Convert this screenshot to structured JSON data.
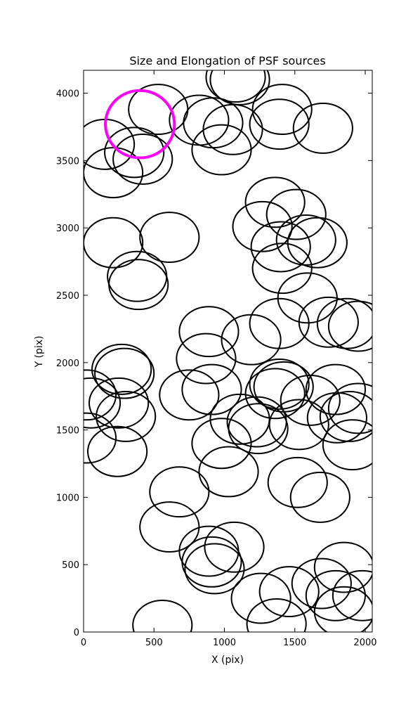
{
  "chart_data": {
    "type": "ellipse-scatter",
    "title": "Size and Elongation of PSF sources",
    "xlabel": "X (pix)",
    "ylabel": "Y (pix)",
    "xlim": [
      0,
      2050
    ],
    "ylim": [
      0,
      4170
    ],
    "xticks": [
      0,
      500,
      1000,
      1500,
      2000
    ],
    "yticks": [
      0,
      500,
      1000,
      1500,
      2000,
      2500,
      3000,
      3500,
      4000
    ],
    "series": [
      {
        "color": "#000000",
        "ellipse_width": 420,
        "ellipse_height": 370,
        "x": [
          1080,
          1110,
          530,
          150,
          360,
          420,
          210,
          820,
          920,
          1060,
          980,
          1410,
          1390,
          1700,
          1360,
          1510,
          1270,
          1400,
          1580,
          1660,
          1410,
          210,
          610,
          380,
          390,
          1590,
          1390,
          1190,
          890,
          870,
          1740,
          1870,
          1950,
          270,
          290,
          20,
          50,
          250,
          300,
          750,
          910,
          1390,
          1420,
          1360,
          1610,
          1790,
          1950,
          1800,
          1890,
          1530,
          1110,
          1230,
          1240,
          980,
          1030,
          20,
          240,
          1910,
          1520,
          1680,
          680,
          610,
          890,
          1070,
          910,
          930,
          1260,
          1460,
          1370,
          1690,
          1850,
          1790,
          1980,
          1850,
          560
        ],
        "y": [
          4120,
          4100,
          3880,
          3620,
          3560,
          3510,
          3410,
          3800,
          3780,
          3730,
          3580,
          3880,
          3770,
          3740,
          3190,
          3100,
          3010,
          2860,
          2910,
          2890,
          2700,
          2890,
          2930,
          2640,
          2580,
          2480,
          2290,
          2170,
          2230,
          2030,
          2300,
          2290,
          2270,
          1950,
          1920,
          1760,
          1700,
          1700,
          1600,
          1760,
          1800,
          1840,
          1820,
          1770,
          1720,
          1800,
          1660,
          1590,
          1600,
          1540,
          1580,
          1560,
          1510,
          1400,
          1190,
          1440,
          1340,
          1390,
          1110,
          1000,
          1040,
          780,
          600,
          630,
          520,
          470,
          250,
          300,
          60,
          360,
          480,
          270,
          270,
          150,
          50
        ]
      },
      {
        "color": "#ff00ff",
        "ellipse_width": 490,
        "ellipse_height": 500,
        "x": [
          400
        ],
        "y": [
          3770
        ]
      }
    ]
  }
}
